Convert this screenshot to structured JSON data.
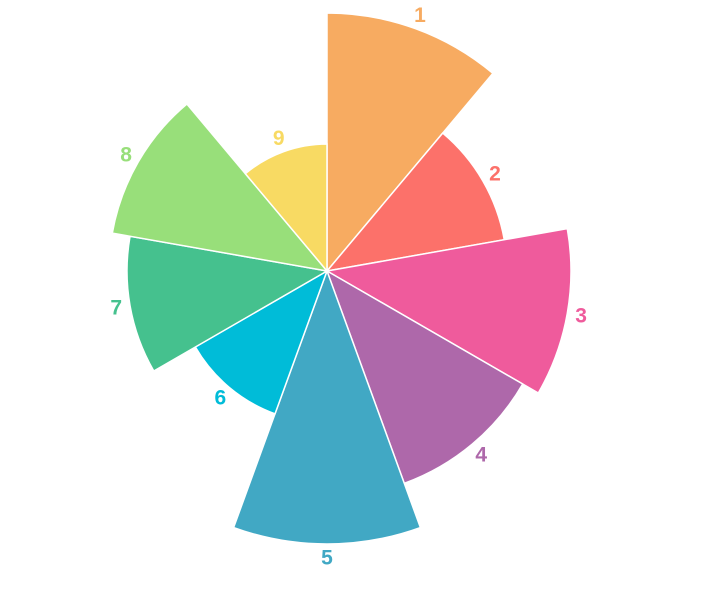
{
  "chart_data": {
    "type": "rose",
    "categories": [
      "1",
      "2",
      "3",
      "4",
      "5",
      "6",
      "7",
      "8",
      "9"
    ],
    "values": [
      258,
      180,
      244,
      226,
      273,
      152,
      200,
      218,
      127
    ],
    "colors": [
      "#f7ab61",
      "#fc716a",
      "#ef5b9c",
      "#ae68aa",
      "#41a8c4",
      "#00bcd8",
      "#45c18e",
      "#98df7a",
      "#f8da63"
    ],
    "start_angle_deg": 0,
    "direction": "clockwise",
    "legend": "none",
    "grid": false
  }
}
